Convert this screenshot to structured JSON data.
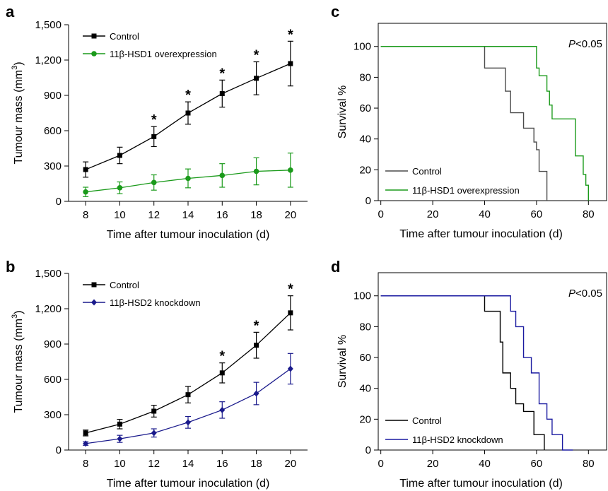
{
  "chart_data": [
    {
      "panel": "a",
      "type": "line",
      "xlabel": "Time after tumour inoculation (d)",
      "ylabel": "Tumour mass (mm",
      "ylabel_sup": "3",
      "ylabel_end": ")",
      "x": [
        8,
        10,
        12,
        14,
        16,
        18,
        20
      ],
      "xticks": [
        "8",
        "10",
        "12",
        "14",
        "16",
        "18",
        "20"
      ],
      "yticks": [
        "0",
        "300",
        "600",
        "900",
        "1,200",
        "1,500"
      ],
      "ytick_values": [
        0,
        300,
        600,
        900,
        1200,
        1500
      ],
      "xlim": [
        7,
        21
      ],
      "ylim": [
        0,
        1500
      ],
      "legend_position": "top-left",
      "series": [
        {
          "name": "Control",
          "color": "#000000",
          "marker": "square",
          "values": [
            270,
            390,
            550,
            750,
            915,
            1045,
            1170
          ],
          "errors": [
            65,
            70,
            85,
            95,
            115,
            140,
            190
          ]
        },
        {
          "name": "11β-HSD1 overexpression",
          "color": "#1a9a1a",
          "marker": "circle",
          "values": [
            80,
            115,
            160,
            195,
            220,
            255,
            265
          ],
          "errors": [
            40,
            50,
            65,
            80,
            100,
            115,
            145
          ]
        }
      ],
      "significance_x": [
        12,
        14,
        16,
        18,
        20
      ],
      "significance_label": "*"
    },
    {
      "panel": "b",
      "type": "line",
      "xlabel": "Time after tumour inoculation (d)",
      "ylabel": "Tumour mass (mm",
      "ylabel_sup": "3",
      "ylabel_end": ")",
      "x": [
        8,
        10,
        12,
        14,
        16,
        18,
        20
      ],
      "xticks": [
        "8",
        "10",
        "12",
        "14",
        "16",
        "18",
        "20"
      ],
      "yticks": [
        "0",
        "300",
        "600",
        "900",
        "1,200",
        "1,500"
      ],
      "ytick_values": [
        0,
        300,
        600,
        900,
        1200,
        1500
      ],
      "xlim": [
        7,
        21
      ],
      "ylim": [
        0,
        1500
      ],
      "legend_position": "top-left",
      "series": [
        {
          "name": "Control",
          "color": "#000000",
          "marker": "square",
          "values": [
            145,
            220,
            330,
            470,
            655,
            890,
            1165
          ],
          "errors": [
            25,
            40,
            50,
            70,
            85,
            110,
            145
          ]
        },
        {
          "name": "11β-HSD2 knockdown",
          "color": "#1a1a8c",
          "marker": "diamond",
          "values": [
            55,
            95,
            145,
            235,
            340,
            480,
            690
          ],
          "errors": [
            15,
            30,
            35,
            50,
            70,
            95,
            130
          ]
        }
      ],
      "significance_x": [
        16,
        18,
        20
      ],
      "significance_label": "*"
    },
    {
      "panel": "c",
      "type": "line",
      "subtype": "step",
      "xlabel": "Time after tumour inoculation (d)",
      "ylabel": "Survival %",
      "xticks": [
        "0",
        "20",
        "40",
        "60",
        "80"
      ],
      "xtick_values": [
        0,
        20,
        40,
        60,
        80
      ],
      "yticks": [
        "0",
        "20",
        "40",
        "60",
        "80",
        "100"
      ],
      "ytick_values": [
        0,
        20,
        40,
        60,
        80,
        100
      ],
      "xlim": [
        -1,
        87
      ],
      "ylim": [
        0,
        115
      ],
      "legend_position": "bottom-left",
      "annotation_italic": "P",
      "annotation_rest": "<0.05",
      "series": [
        {
          "name": "Control",
          "color": "#4a4a4a",
          "x": [
            0,
            40,
            40,
            48,
            48,
            50,
            50,
            55,
            55,
            59,
            59,
            60,
            60,
            61,
            61,
            64,
            64
          ],
          "y": [
            100,
            100,
            86,
            86,
            71,
            71,
            57,
            57,
            47,
            47,
            38,
            38,
            33,
            33,
            19,
            19,
            0
          ]
        },
        {
          "name": "11β-HSD1 overexpression",
          "color": "#1a9a1a",
          "x": [
            0,
            60,
            60,
            61,
            61,
            64,
            64,
            65,
            65,
            66,
            66,
            75,
            75,
            78,
            78,
            79,
            79,
            80,
            80
          ],
          "y": [
            100,
            100,
            86,
            86,
            81,
            81,
            71,
            71,
            62,
            62,
            53,
            53,
            29,
            29,
            17,
            17,
            10,
            10,
            0
          ]
        }
      ]
    },
    {
      "panel": "d",
      "type": "line",
      "subtype": "step",
      "xlabel": "Time after tumour inoculation (d)",
      "ylabel": "Survival %",
      "xticks": [
        "0",
        "20",
        "40",
        "60",
        "80"
      ],
      "xtick_values": [
        0,
        20,
        40,
        60,
        80
      ],
      "yticks": [
        "0",
        "20",
        "40",
        "60",
        "80",
        "100"
      ],
      "ytick_values": [
        0,
        20,
        40,
        60,
        80,
        100
      ],
      "xlim": [
        -1,
        87
      ],
      "ylim": [
        0,
        115
      ],
      "legend_position": "bottom-left",
      "annotation_italic": "P",
      "annotation_rest": "<0.05",
      "series": [
        {
          "name": "Control",
          "color": "#000000",
          "x": [
            0,
            40,
            40,
            46,
            46,
            47,
            47,
            50,
            50,
            52,
            52,
            55,
            55,
            59,
            59,
            63,
            63
          ],
          "y": [
            100,
            100,
            90,
            90,
            70,
            70,
            50,
            50,
            40,
            40,
            30,
            30,
            25,
            25,
            10,
            10,
            0
          ]
        },
        {
          "name": "11β-HSD2 knockdown",
          "color": "#1a1aa0",
          "x": [
            0,
            50,
            50,
            52,
            52,
            55,
            55,
            58,
            58,
            61,
            61,
            64,
            64,
            66,
            66,
            70,
            70,
            74,
            74
          ],
          "y": [
            100,
            100,
            90,
            90,
            80,
            80,
            60,
            60,
            50,
            50,
            30,
            30,
            20,
            20,
            10,
            10,
            0,
            0,
            0
          ]
        }
      ]
    }
  ]
}
